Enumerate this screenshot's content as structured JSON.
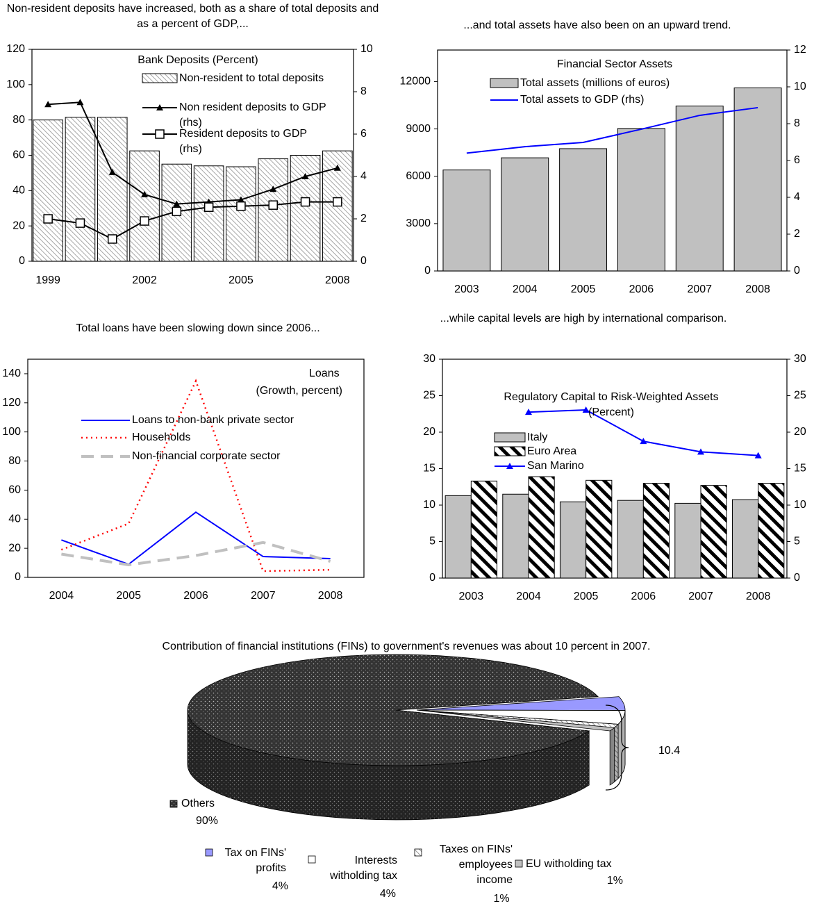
{
  "chart_data": [
    {
      "type": "combo",
      "title": "Non-resident deposits have increased, both as a share of total deposits and as a percent of GDP,...",
      "subtitle": [
        "Bank Deposits (Percent)"
      ],
      "categories": [
        "1999",
        null,
        null,
        "2002",
        null,
        null,
        "2005",
        null,
        null,
        "2008"
      ],
      "series": [
        {
          "name": "Non-resident to total deposits",
          "type": "bar",
          "color": "#a6a6a6",
          "pattern": "hatch",
          "values": [
            80,
            81.5,
            81.5,
            62.5,
            55,
            54,
            53.5,
            58,
            60,
            62.5
          ]
        },
        {
          "name": "Non resident deposits to GDP (rhs)",
          "type": "line",
          "axis": "y2",
          "color": "#000000",
          "marker": "triangle",
          "values": [
            7.4,
            7.5,
            4.2,
            3.15,
            2.7,
            2.8,
            2.9,
            3.4,
            4.0,
            4.4
          ]
        },
        {
          "name": "Resident deposits to GDP (rhs)",
          "type": "line",
          "axis": "y2",
          "color": "#000000",
          "marker": "square",
          "values": [
            2.0,
            1.8,
            1.05,
            1.9,
            2.35,
            2.55,
            2.6,
            2.65,
            2.8,
            2.8
          ]
        }
      ],
      "ylim": [
        0,
        120
      ],
      "yticks": [
        0,
        20,
        40,
        60,
        80,
        100,
        120
      ],
      "y2lim": [
        0,
        10
      ],
      "y2ticks": [
        0,
        2,
        4,
        6,
        8,
        10
      ]
    },
    {
      "type": "combo",
      "title": "...and total assets have also been on an upward trend.",
      "subtitle": [
        "Financial Sector Assets"
      ],
      "categories": [
        "2003",
        "2004",
        "2005",
        "2006",
        "2007",
        "2008"
      ],
      "series": [
        {
          "name": "Total assets (millions of euros)",
          "type": "bar",
          "color": "#c0c0c0",
          "values": [
            6400,
            7170,
            7750,
            9030,
            10450,
            11600
          ]
        },
        {
          "name": "Total assets to GDP (rhs)",
          "type": "line",
          "axis": "y2",
          "color": "#0000ff",
          "values": [
            6.4,
            6.75,
            6.98,
            7.7,
            8.45,
            8.87
          ]
        }
      ],
      "ylim": [
        0,
        14000
      ],
      "yticks": [
        0,
        3000,
        6000,
        9000,
        12000
      ],
      "y2lim": [
        0,
        12
      ],
      "y2ticks": [
        0,
        2,
        4,
        6,
        8,
        10,
        12
      ]
    },
    {
      "type": "line",
      "title": "Total loans have been slowing down since 2006...",
      "subtitle": [
        "Loans",
        "(Growth, percent)"
      ],
      "categories": [
        "2004",
        "2005",
        "2006",
        "2007",
        "2008"
      ],
      "series": [
        {
          "name": "Loans to non-bank private sector",
          "type": "line",
          "color": "#0000ff",
          "values": [
            25.7,
            9,
            44.8,
            14.3,
            12.9
          ]
        },
        {
          "name": "Households",
          "type": "line",
          "color": "#ff0000",
          "dash": "dotted",
          "values": [
            19,
            37,
            135,
            4.3,
            5.2
          ]
        },
        {
          "name": "Non-financial corporate sector",
          "type": "line",
          "color": "#c0c0c0",
          "dash": "dashed",
          "values": [
            16,
            8.6,
            15,
            24,
            11
          ]
        }
      ],
      "ylim": [
        0,
        150
      ],
      "yticks": [
        0,
        20,
        40,
        60,
        80,
        100,
        120,
        140
      ]
    },
    {
      "type": "combo",
      "title": "...while capital levels are high by international comparison.",
      "subtitle": [
        "Regulatory Capital to Risk-Weighted Assets",
        "(Percent)"
      ],
      "categories": [
        "2003",
        "2004",
        "2005",
        "2006",
        "2007",
        "2008"
      ],
      "series": [
        {
          "name": "Italy",
          "type": "bar",
          "color": "#c0c0c0",
          "values": [
            11.3,
            11.5,
            10.45,
            10.65,
            10.25,
            10.75
          ]
        },
        {
          "name": "Euro Area",
          "type": "bar",
          "color": "#000000",
          "pattern": "hatch-bold",
          "values": [
            13.3,
            13.9,
            13.4,
            13.0,
            12.7,
            13.0
          ]
        },
        {
          "name": "San Marino",
          "type": "line",
          "axis": "y2",
          "color": "#0000ff",
          "marker": "triangle",
          "values": [
            null,
            22.75,
            23.05,
            18.75,
            17.3,
            16.8
          ]
        }
      ],
      "ylim": [
        0,
        30
      ],
      "yticks": [
        0,
        5,
        10,
        15,
        20,
        25,
        30
      ],
      "y2lim": [
        0,
        30
      ],
      "y2ticks": [
        0,
        5,
        10,
        15,
        20,
        25,
        30
      ]
    },
    {
      "type": "pie",
      "title": "Contribution of financial institutions (FINs) to government's revenues was about 10 percent in 2007.",
      "categories": [
        "Others",
        "Tax on FINs' profits",
        "Interests witholding tax",
        "Taxes on FINs' employees income",
        "EU witholding tax"
      ],
      "values": [
        90,
        4,
        4,
        1,
        1
      ],
      "value_labels": [
        "90%",
        "4%",
        "4%",
        "1%",
        "1%"
      ],
      "colors": [
        "#333333",
        "#9999ff",
        "#ffffff",
        "#969696",
        "#c0c0c0"
      ],
      "patterns": [
        "dots",
        null,
        null,
        "hatch",
        null
      ],
      "annotation": "10.4"
    }
  ]
}
